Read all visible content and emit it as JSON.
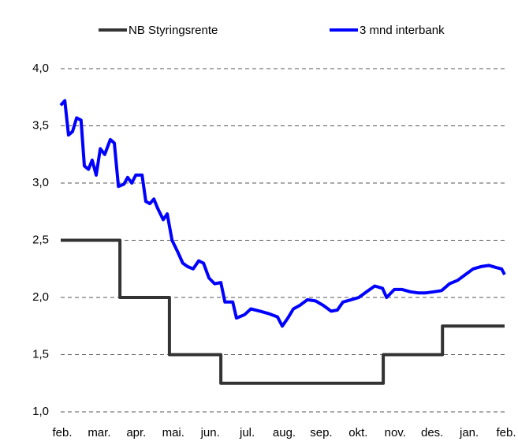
{
  "chart_data": {
    "type": "line",
    "xlim": [
      0,
      12
    ],
    "xticks": [
      {
        "value": 0,
        "label": "feb."
      },
      {
        "value": 1,
        "label": "mar."
      },
      {
        "value": 2,
        "label": "apr."
      },
      {
        "value": 3,
        "label": "mai."
      },
      {
        "value": 4,
        "label": "jun."
      },
      {
        "value": 5,
        "label": "jul."
      },
      {
        "value": 6,
        "label": "aug."
      },
      {
        "value": 7,
        "label": "sep."
      },
      {
        "value": 8,
        "label": "okt."
      },
      {
        "value": 9,
        "label": "nov."
      },
      {
        "value": 10,
        "label": "des."
      },
      {
        "value": 11,
        "label": "jan."
      },
      {
        "value": 12,
        "label": "feb."
      }
    ],
    "ylim": [
      1.0,
      4.0
    ],
    "yticks": [
      {
        "value": 1.0,
        "label": "1,0"
      },
      {
        "value": 1.5,
        "label": "1,5"
      },
      {
        "value": 2.0,
        "label": "2,0"
      },
      {
        "value": 2.5,
        "label": "2,5"
      },
      {
        "value": 3.0,
        "label": "3,0"
      },
      {
        "value": 3.5,
        "label": "3,5"
      },
      {
        "value": 4.0,
        "label": "4,0"
      }
    ],
    "grid": true,
    "legend": "top",
    "series": [
      {
        "name": "NB Styringsrente",
        "color": "#333333",
        "x": [
          0,
          1.6,
          1.6,
          2.94,
          2.94,
          4.33,
          4.33,
          8.72,
          8.72,
          10.32,
          10.32,
          12
        ],
        "values": [
          2.5,
          2.5,
          2.0,
          2.0,
          1.5,
          1.5,
          1.25,
          1.25,
          1.5,
          1.5,
          1.75,
          1.75
        ]
      },
      {
        "name": "3 mnd interbank",
        "color": "#0000ff",
        "x": [
          0,
          0.11,
          0.21,
          0.32,
          0.43,
          0.55,
          0.64,
          0.75,
          0.85,
          0.96,
          1.07,
          1.19,
          1.34,
          1.45,
          1.56,
          1.71,
          1.81,
          1.92,
          2.03,
          2.2,
          2.3,
          2.41,
          2.52,
          2.62,
          2.77,
          2.88,
          3.01,
          3.16,
          3.3,
          3.43,
          3.58,
          3.73,
          3.86,
          4.01,
          4.16,
          4.33,
          4.44,
          4.65,
          4.75,
          4.97,
          5.14,
          5.39,
          5.61,
          5.86,
          5.99,
          6.14,
          6.29,
          6.46,
          6.67,
          6.89,
          7.1,
          7.31,
          7.48,
          7.63,
          7.85,
          8.06,
          8.27,
          8.49,
          8.7,
          8.81,
          9.02,
          9.23,
          9.45,
          9.66,
          9.87,
          10.09,
          10.3,
          10.51,
          10.73,
          10.94,
          11.15,
          11.36,
          11.58,
          11.79,
          11.92,
          12
        ],
        "values": [
          3.68,
          3.72,
          3.42,
          3.45,
          3.57,
          3.55,
          3.15,
          3.12,
          3.2,
          3.07,
          3.3,
          3.25,
          3.38,
          3.35,
          2.97,
          2.99,
          3.05,
          3.0,
          3.07,
          3.07,
          2.84,
          2.82,
          2.86,
          2.78,
          2.68,
          2.73,
          2.5,
          2.4,
          2.3,
          2.27,
          2.25,
          2.32,
          2.3,
          2.17,
          2.12,
          2.13,
          1.96,
          1.96,
          1.82,
          1.85,
          1.9,
          1.88,
          1.86,
          1.83,
          1.75,
          1.82,
          1.9,
          1.93,
          1.98,
          1.97,
          1.93,
          1.88,
          1.89,
          1.96,
          1.98,
          2.0,
          2.05,
          2.1,
          2.08,
          2.0,
          2.07,
          2.07,
          2.05,
          2.04,
          2.04,
          2.05,
          2.06,
          2.12,
          2.15,
          2.2,
          2.25,
          2.27,
          2.28,
          2.26,
          2.25,
          2.2
        ]
      }
    ]
  }
}
